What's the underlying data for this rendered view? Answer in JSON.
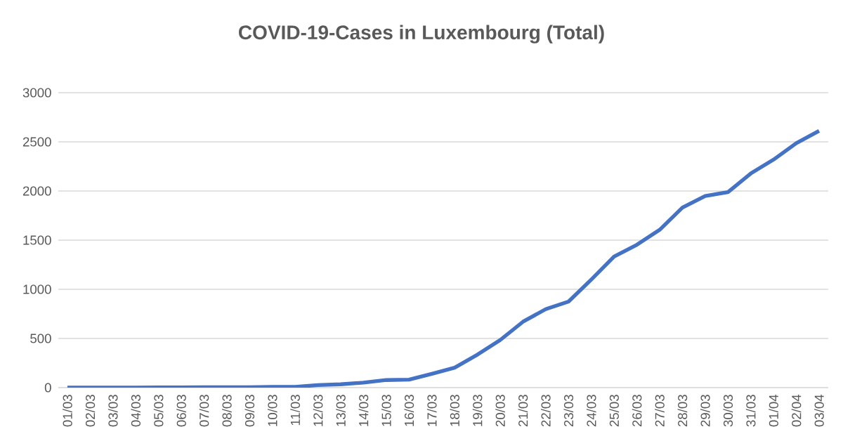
{
  "chart_data": {
    "type": "line",
    "title": "COVID-19-Cases in Luxembourg (Total)",
    "categories": [
      "01/03",
      "02/03",
      "03/03",
      "04/03",
      "05/03",
      "06/03",
      "07/03",
      "08/03",
      "09/03",
      "10/03",
      "11/03",
      "12/03",
      "13/03",
      "14/03",
      "15/03",
      "16/03",
      "17/03",
      "18/03",
      "19/03",
      "20/03",
      "21/03",
      "22/03",
      "23/03",
      "24/03",
      "25/03",
      "26/03",
      "27/03",
      "28/03",
      "29/03",
      "30/03",
      "31/03",
      "01/04",
      "02/04",
      "03/04"
    ],
    "values": [
      1,
      1,
      1,
      1,
      2,
      3,
      4,
      5,
      5,
      7,
      7,
      26,
      34,
      51,
      77,
      81,
      140,
      203,
      335,
      484,
      670,
      798,
      875,
      1099,
      1333,
      1453,
      1605,
      1831,
      1950,
      1988,
      2178,
      2319,
      2487,
      2612
    ],
    "color": "#4472c4",
    "ylim": [
      0,
      3000
    ],
    "yticks": [
      0,
      500,
      1000,
      1500,
      2000,
      2500,
      3000
    ],
    "grid": "y"
  }
}
